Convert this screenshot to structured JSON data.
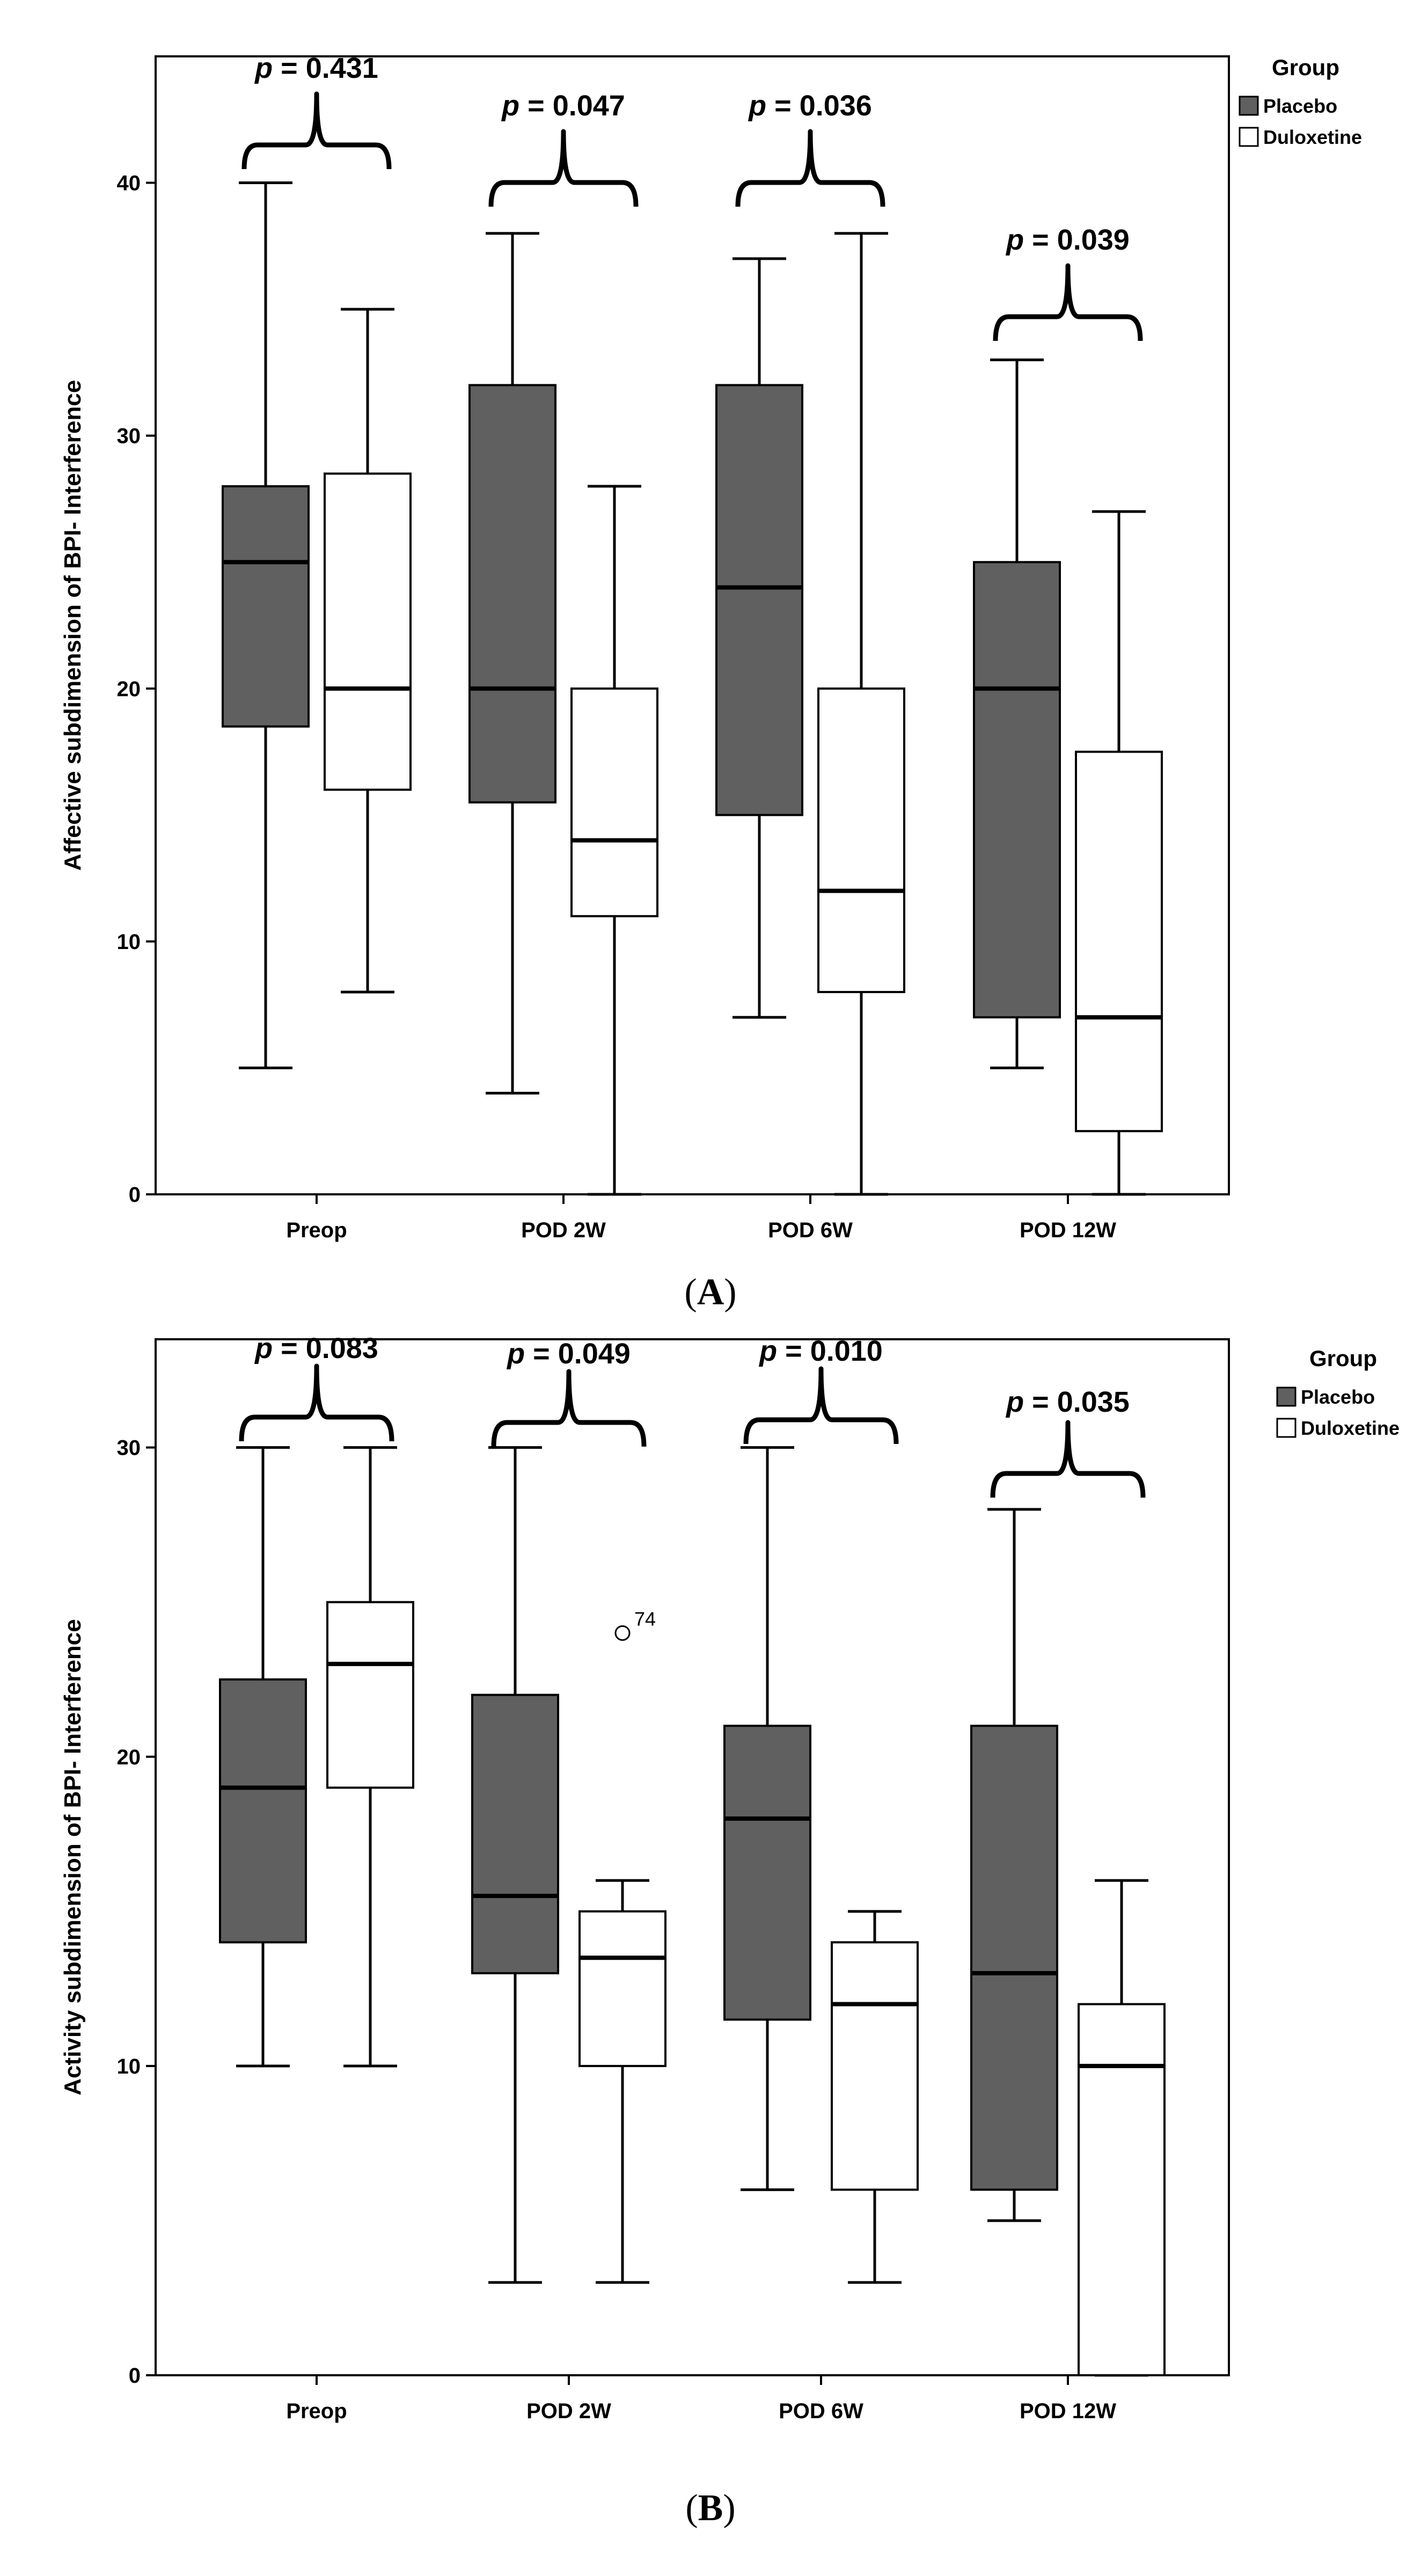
{
  "chart_data": [
    {
      "panel_label": "A",
      "type": "boxplot",
      "ylabel": "Affective subdimension of BPI- Interference",
      "ylim": [
        0,
        45
      ],
      "yticks": [
        0,
        10,
        20,
        30,
        40
      ],
      "categories": [
        "Preop",
        "POD 2W",
        "POD 6W",
        "POD 12W"
      ],
      "legend": {
        "title": "Group",
        "entries": [
          "Placebo",
          "Duloxetine"
        ],
        "position": "top-right"
      },
      "p_values": [
        "0.431",
        "0.047",
        "0.036",
        "0.039"
      ],
      "p_prefix": "p",
      "series": [
        {
          "name": "Placebo",
          "color": "#606060",
          "boxes": [
            {
              "min": 5,
              "q1": 18.5,
              "median": 25,
              "q3": 28,
              "max": 40
            },
            {
              "min": 4,
              "q1": 15.5,
              "median": 20,
              "q3": 32,
              "max": 38
            },
            {
              "min": 7,
              "q1": 15,
              "median": 24,
              "q3": 32,
              "max": 37
            },
            {
              "min": 5,
              "q1": 7,
              "median": 20,
              "q3": 25,
              "max": 33
            }
          ]
        },
        {
          "name": "Duloxetine",
          "color": "#ffffff",
          "boxes": [
            {
              "min": 8,
              "q1": 16,
              "median": 20,
              "q3": 28.5,
              "max": 35
            },
            {
              "min": 0,
              "q1": 11,
              "median": 14,
              "q3": 20,
              "max": 28
            },
            {
              "min": 0,
              "q1": 8,
              "median": 12,
              "q3": 20,
              "max": 38
            },
            {
              "min": 0,
              "q1": 2.5,
              "median": 7,
              "q3": 17.5,
              "max": 27
            }
          ]
        }
      ],
      "outliers": []
    },
    {
      "panel_label": "B",
      "type": "boxplot",
      "ylabel": "Activity subdimension of BPI- Interference",
      "ylim": [
        0,
        33.5
      ],
      "yticks": [
        0,
        10,
        20,
        30
      ],
      "categories": [
        "Preop",
        "POD 2W",
        "POD 6W",
        "POD 12W"
      ],
      "legend": {
        "title": "Group",
        "entries": [
          "Placebo",
          "Duloxetine"
        ],
        "position": "top-right"
      },
      "p_values": [
        "0.083",
        "0.049",
        "0.010",
        "0.035"
      ],
      "p_prefix": "p",
      "series": [
        {
          "name": "Placebo",
          "color": "#606060",
          "boxes": [
            {
              "min": 10,
              "q1": 14,
              "median": 19,
              "q3": 22.5,
              "max": 30
            },
            {
              "min": 3,
              "q1": 13,
              "median": 15.5,
              "q3": 22,
              "max": 30
            },
            {
              "min": 6,
              "q1": 11.5,
              "median": 18,
              "q3": 21,
              "max": 30
            },
            {
              "min": 5,
              "q1": 6,
              "median": 13,
              "q3": 21,
              "max": 28
            }
          ]
        },
        {
          "name": "Duloxetine",
          "color": "#ffffff",
          "boxes": [
            {
              "min": 10,
              "q1": 19,
              "median": 23,
              "q3": 25,
              "max": 30
            },
            {
              "min": 3,
              "q1": 10,
              "median": 13.5,
              "q3": 15,
              "max": 16
            },
            {
              "min": 3,
              "q1": 6,
              "median": 12,
              "q3": 14,
              "max": 15
            },
            {
              "min": 0,
              "q1": 0,
              "median": 10,
              "q3": 12,
              "max": 16
            }
          ]
        }
      ],
      "outliers": [
        {
          "category": "POD 2W",
          "series": "Duloxetine",
          "value": 24,
          "label": "74"
        }
      ]
    }
  ]
}
